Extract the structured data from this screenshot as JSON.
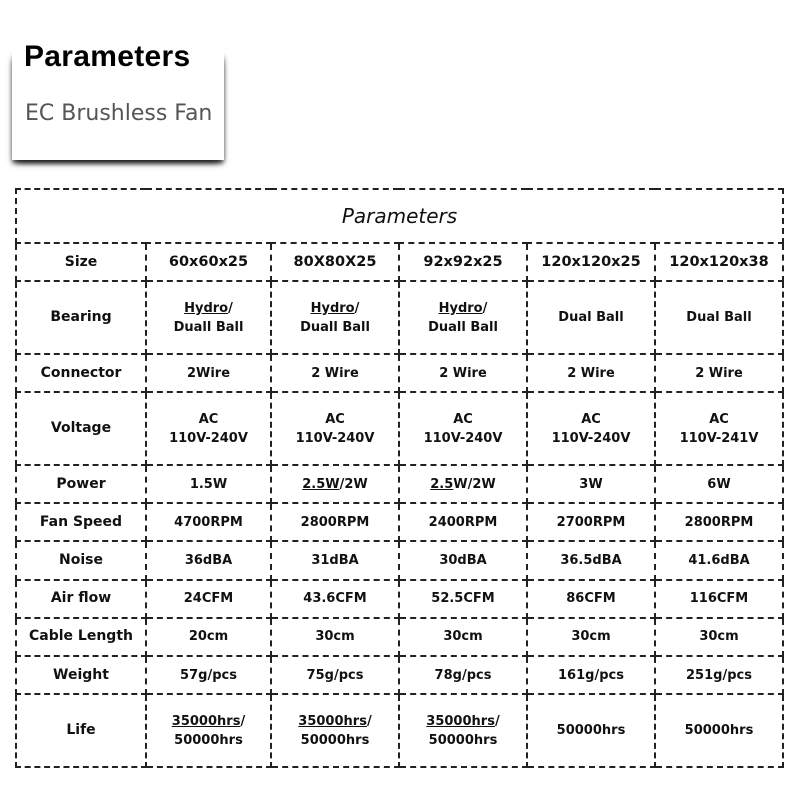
{
  "header": {
    "title": "Parameters",
    "subtitle": "EC Brushless Fan"
  },
  "table": {
    "title": "Parameters",
    "rows": [
      {
        "label": "Size",
        "cells": [
          [
            [
              {
                "t": "60x60x25"
              }
            ]
          ],
          [
            [
              {
                "t": "80X80X25"
              }
            ]
          ],
          [
            [
              {
                "t": "92x92x25"
              }
            ]
          ],
          [
            [
              {
                "t": "120x120x25"
              }
            ]
          ],
          [
            [
              {
                "t": "120x120x38"
              }
            ]
          ]
        ]
      },
      {
        "label": "Bearing",
        "cells": [
          [
            [
              {
                "t": "Hydro",
                "u": true
              },
              {
                "t": "/"
              }
            ],
            [
              {
                "t": "Duall Ball"
              }
            ]
          ],
          [
            [
              {
                "t": "Hydro",
                "u": true
              },
              {
                "t": "/"
              }
            ],
            [
              {
                "t": "Duall Ball"
              }
            ]
          ],
          [
            [
              {
                "t": "Hydro",
                "u": true
              },
              {
                "t": "/"
              }
            ],
            [
              {
                "t": "Duall Ball"
              }
            ]
          ],
          [
            [
              {
                "t": "Dual Ball"
              }
            ]
          ],
          [
            [
              {
                "t": "Dual Ball"
              }
            ]
          ]
        ]
      },
      {
        "label": "Connector",
        "cells": [
          [
            [
              {
                "t": "2Wire"
              }
            ]
          ],
          [
            [
              {
                "t": "2 Wire"
              }
            ]
          ],
          [
            [
              {
                "t": "2 Wire"
              }
            ]
          ],
          [
            [
              {
                "t": "2 Wire"
              }
            ]
          ],
          [
            [
              {
                "t": "2 Wire"
              }
            ]
          ]
        ]
      },
      {
        "label": "Voltage",
        "cells": [
          [
            [
              {
                "t": "AC"
              }
            ],
            [
              {
                "t": "110V-240V"
              }
            ]
          ],
          [
            [
              {
                "t": "AC"
              }
            ],
            [
              {
                "t": "110V-240V"
              }
            ]
          ],
          [
            [
              {
                "t": "AC"
              }
            ],
            [
              {
                "t": "110V-240V"
              }
            ]
          ],
          [
            [
              {
                "t": "AC"
              }
            ],
            [
              {
                "t": "110V-240V"
              }
            ]
          ],
          [
            [
              {
                "t": "AC"
              }
            ],
            [
              {
                "t": "110V-241V"
              }
            ]
          ]
        ]
      },
      {
        "label": "Power",
        "cells": [
          [
            [
              {
                "t": "1.5W"
              }
            ]
          ],
          [
            [
              {
                "t": "2.5W",
                "u": true
              },
              {
                "t": "/2W"
              }
            ]
          ],
          [
            [
              {
                "t": "2.5",
                "u": true
              },
              {
                "t": "W/2W"
              }
            ]
          ],
          [
            [
              {
                "t": "3W"
              }
            ]
          ],
          [
            [
              {
                "t": "6W"
              }
            ]
          ]
        ]
      },
      {
        "label": "Fan Speed",
        "cells": [
          [
            [
              {
                "t": "4700RPM"
              }
            ]
          ],
          [
            [
              {
                "t": "2800RPM"
              }
            ]
          ],
          [
            [
              {
                "t": "2400RPM"
              }
            ]
          ],
          [
            [
              {
                "t": "2700RPM"
              }
            ]
          ],
          [
            [
              {
                "t": "2800RPM"
              }
            ]
          ]
        ]
      },
      {
        "label": "Noise",
        "cells": [
          [
            [
              {
                "t": "36dBA"
              }
            ]
          ],
          [
            [
              {
                "t": "31dBA"
              }
            ]
          ],
          [
            [
              {
                "t": "30dBA"
              }
            ]
          ],
          [
            [
              {
                "t": "36.5dBA"
              }
            ]
          ],
          [
            [
              {
                "t": "41.6dBA"
              }
            ]
          ]
        ]
      },
      {
        "label": "Air flow",
        "cells": [
          [
            [
              {
                "t": "24CFM"
              }
            ]
          ],
          [
            [
              {
                "t": "43.6CFM"
              }
            ]
          ],
          [
            [
              {
                "t": "52.5CFM"
              }
            ]
          ],
          [
            [
              {
                "t": "86CFM"
              }
            ]
          ],
          [
            [
              {
                "t": "116CFM"
              }
            ]
          ]
        ]
      },
      {
        "label": "Cable Length",
        "cells": [
          [
            [
              {
                "t": "20cm"
              }
            ]
          ],
          [
            [
              {
                "t": "30cm"
              }
            ]
          ],
          [
            [
              {
                "t": "30cm"
              }
            ]
          ],
          [
            [
              {
                "t": "30cm"
              }
            ]
          ],
          [
            [
              {
                "t": "30cm"
              }
            ]
          ]
        ]
      },
      {
        "label": "Weight",
        "cells": [
          [
            [
              {
                "t": "57g/pcs"
              }
            ]
          ],
          [
            [
              {
                "t": "75g/pcs"
              }
            ]
          ],
          [
            [
              {
                "t": "78g/pcs"
              }
            ]
          ],
          [
            [
              {
                "t": "161g/pcs"
              }
            ]
          ],
          [
            [
              {
                "t": "251g/pcs"
              }
            ]
          ]
        ]
      },
      {
        "label": "Life",
        "cells": [
          [
            [
              {
                "t": "35000hrs",
                "u": true
              },
              {
                "t": "/"
              }
            ],
            [
              {
                "t": "50000hrs"
              }
            ]
          ],
          [
            [
              {
                "t": "35000hrs",
                "u": true
              },
              {
                "t": "/"
              }
            ],
            [
              {
                "t": "50000hrs"
              }
            ]
          ],
          [
            [
              {
                "t": "35000hrs",
                "u": true
              },
              {
                "t": "/"
              }
            ],
            [
              {
                "t": "50000hrs"
              }
            ]
          ],
          [
            [
              {
                "t": "50000hrs"
              }
            ]
          ],
          [
            [
              {
                "t": "50000hrs"
              }
            ]
          ]
        ]
      }
    ]
  }
}
